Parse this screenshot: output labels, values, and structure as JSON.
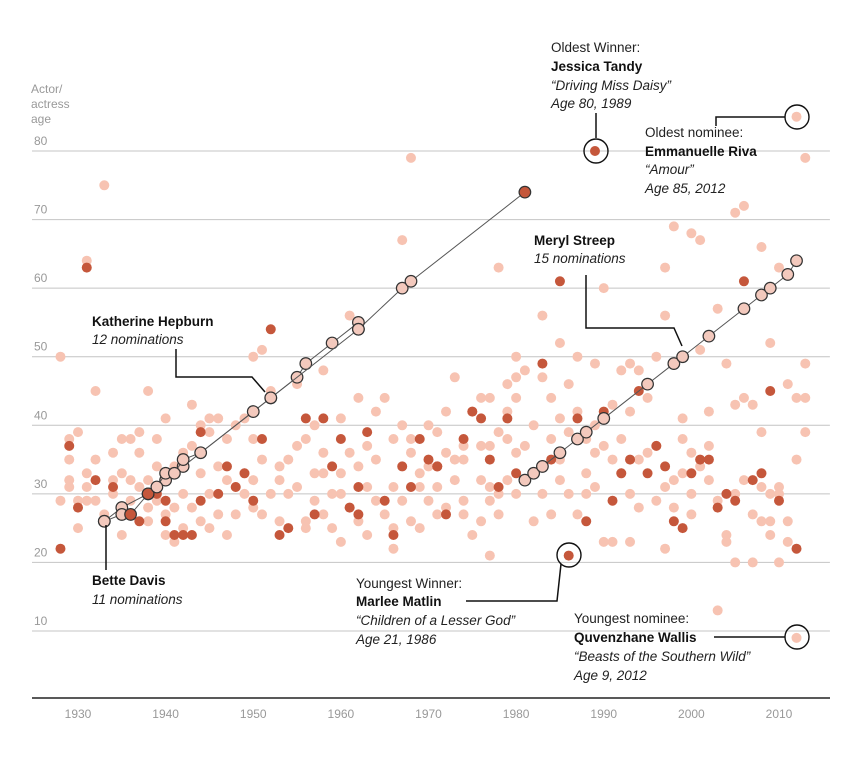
{
  "chart_data": {
    "type": "scatter",
    "title": "",
    "ylabel": [
      "Actor/",
      "actress",
      "age"
    ],
    "xlabel": "",
    "xlim": [
      1925,
      2015
    ],
    "ylim": [
      0,
      90
    ],
    "x_ticks": [
      1930,
      1940,
      1950,
      1960,
      1970,
      1980,
      1990,
      2000,
      2010
    ],
    "y_ticks": [
      10,
      20,
      30,
      40,
      50,
      60,
      70,
      80
    ],
    "grid": true,
    "colors": {
      "nominee": "#f7c3b2",
      "winner": "#c5573b",
      "career": "#f3c9bd",
      "outline": "#333333"
    },
    "nominees": [
      [
        1928,
        50
      ],
      [
        1928,
        29
      ],
      [
        1929,
        32
      ],
      [
        1929,
        35
      ],
      [
        1929,
        31
      ],
      [
        1929,
        38
      ],
      [
        1930,
        25
      ],
      [
        1930,
        29
      ],
      [
        1930,
        39
      ],
      [
        1931,
        64
      ],
      [
        1931,
        31
      ],
      [
        1931,
        29
      ],
      [
        1931,
        33
      ],
      [
        1932,
        45
      ],
      [
        1932,
        29
      ],
      [
        1932,
        35
      ],
      [
        1933,
        75
      ],
      [
        1933,
        27
      ],
      [
        1934,
        30
      ],
      [
        1934,
        36
      ],
      [
        1934,
        32
      ],
      [
        1935,
        24
      ],
      [
        1935,
        28
      ],
      [
        1935,
        38
      ],
      [
        1935,
        33
      ],
      [
        1936,
        29
      ],
      [
        1936,
        38
      ],
      [
        1936,
        32
      ],
      [
        1937,
        31
      ],
      [
        1937,
        36
      ],
      [
        1937,
        39
      ],
      [
        1938,
        28
      ],
      [
        1938,
        32
      ],
      [
        1938,
        26
      ],
      [
        1938,
        45
      ],
      [
        1939,
        38
      ],
      [
        1939,
        34
      ],
      [
        1939,
        29
      ],
      [
        1940,
        27
      ],
      [
        1940,
        24
      ],
      [
        1940,
        41
      ],
      [
        1941,
        23
      ],
      [
        1941,
        34
      ],
      [
        1941,
        28
      ],
      [
        1942,
        30
      ],
      [
        1942,
        36
      ],
      [
        1942,
        25
      ],
      [
        1943,
        28
      ],
      [
        1943,
        43
      ],
      [
        1943,
        37
      ],
      [
        1944,
        33
      ],
      [
        1944,
        26
      ],
      [
        1944,
        40
      ],
      [
        1945,
        30
      ],
      [
        1945,
        39
      ],
      [
        1945,
        41
      ],
      [
        1945,
        25
      ],
      [
        1946,
        27
      ],
      [
        1946,
        34
      ],
      [
        1946,
        41
      ],
      [
        1947,
        24
      ],
      [
        1947,
        32
      ],
      [
        1947,
        38
      ],
      [
        1948,
        31
      ],
      [
        1948,
        40
      ],
      [
        1948,
        27
      ],
      [
        1949,
        33
      ],
      [
        1949,
        30
      ],
      [
        1949,
        41
      ],
      [
        1950,
        50
      ],
      [
        1950,
        38
      ],
      [
        1950,
        32
      ],
      [
        1950,
        28
      ],
      [
        1951,
        51
      ],
      [
        1951,
        35
      ],
      [
        1951,
        27
      ],
      [
        1952,
        45
      ],
      [
        1952,
        30
      ],
      [
        1953,
        34
      ],
      [
        1953,
        26
      ],
      [
        1953,
        32
      ],
      [
        1954,
        35
      ],
      [
        1954,
        30
      ],
      [
        1955,
        37
      ],
      [
        1955,
        31
      ],
      [
        1955,
        46
      ],
      [
        1956,
        38
      ],
      [
        1956,
        26
      ],
      [
        1956,
        25
      ],
      [
        1957,
        29
      ],
      [
        1957,
        40
      ],
      [
        1957,
        33
      ],
      [
        1958,
        36
      ],
      [
        1958,
        33
      ],
      [
        1958,
        27
      ],
      [
        1958,
        48
      ],
      [
        1959,
        25
      ],
      [
        1959,
        52
      ],
      [
        1959,
        30
      ],
      [
        1960,
        33
      ],
      [
        1960,
        23
      ],
      [
        1960,
        41
      ],
      [
        1960,
        30
      ],
      [
        1961,
        56
      ],
      [
        1961,
        28
      ],
      [
        1961,
        36
      ],
      [
        1962,
        26
      ],
      [
        1962,
        34
      ],
      [
        1962,
        44
      ],
      [
        1963,
        24
      ],
      [
        1963,
        31
      ],
      [
        1963,
        37
      ],
      [
        1964,
        29
      ],
      [
        1964,
        35
      ],
      [
        1964,
        42
      ],
      [
        1965,
        44
      ],
      [
        1965,
        27
      ],
      [
        1966,
        25
      ],
      [
        1966,
        38
      ],
      [
        1966,
        31
      ],
      [
        1966,
        22
      ],
      [
        1967,
        67
      ],
      [
        1967,
        40
      ],
      [
        1967,
        29
      ],
      [
        1968,
        79
      ],
      [
        1968,
        26
      ],
      [
        1968,
        38
      ],
      [
        1968,
        36
      ],
      [
        1969,
        31
      ],
      [
        1969,
        33
      ],
      [
        1969,
        25
      ],
      [
        1970,
        40
      ],
      [
        1970,
        29
      ],
      [
        1970,
        34
      ],
      [
        1971,
        39
      ],
      [
        1971,
        27
      ],
      [
        1971,
        31
      ],
      [
        1972,
        36
      ],
      [
        1972,
        28
      ],
      [
        1972,
        42
      ],
      [
        1973,
        35
      ],
      [
        1973,
        32
      ],
      [
        1973,
        47
      ],
      [
        1974,
        29
      ],
      [
        1974,
        35
      ],
      [
        1974,
        27
      ],
      [
        1974,
        37
      ],
      [
        1975,
        42
      ],
      [
        1975,
        24
      ],
      [
        1976,
        32
      ],
      [
        1976,
        37
      ],
      [
        1976,
        44
      ],
      [
        1976,
        26
      ],
      [
        1977,
        44
      ],
      [
        1977,
        31
      ],
      [
        1977,
        37
      ],
      [
        1977,
        21
      ],
      [
        1977,
        29
      ],
      [
        1978,
        30
      ],
      [
        1978,
        63
      ],
      [
        1978,
        39
      ],
      [
        1978,
        27
      ],
      [
        1979,
        38
      ],
      [
        1979,
        46
      ],
      [
        1979,
        32
      ],
      [
        1979,
        42
      ],
      [
        1980,
        44
      ],
      [
        1980,
        36
      ],
      [
        1980,
        30
      ],
      [
        1980,
        50
      ],
      [
        1980,
        47
      ],
      [
        1981,
        48
      ],
      [
        1981,
        32
      ],
      [
        1981,
        37
      ],
      [
        1982,
        33
      ],
      [
        1982,
        40
      ],
      [
        1982,
        26
      ],
      [
        1983,
        30
      ],
      [
        1983,
        47
      ],
      [
        1983,
        34
      ],
      [
        1983,
        56
      ],
      [
        1984,
        27
      ],
      [
        1984,
        38
      ],
      [
        1984,
        44
      ],
      [
        1985,
        41
      ],
      [
        1985,
        32
      ],
      [
        1985,
        35
      ],
      [
        1985,
        52
      ],
      [
        1986,
        30
      ],
      [
        1986,
        46
      ],
      [
        1986,
        39
      ],
      [
        1987,
        27
      ],
      [
        1987,
        42
      ],
      [
        1987,
        50
      ],
      [
        1988,
        38
      ],
      [
        1988,
        33
      ],
      [
        1988,
        30
      ],
      [
        1989,
        40
      ],
      [
        1989,
        49
      ],
      [
        1989,
        36
      ],
      [
        1989,
        31
      ],
      [
        1990,
        60
      ],
      [
        1990,
        23
      ],
      [
        1990,
        37
      ],
      [
        1991,
        35
      ],
      [
        1991,
        23
      ],
      [
        1991,
        43
      ],
      [
        1992,
        48
      ],
      [
        1992,
        33
      ],
      [
        1992,
        38
      ],
      [
        1993,
        49
      ],
      [
        1993,
        30
      ],
      [
        1993,
        42
      ],
      [
        1993,
        23
      ],
      [
        1994,
        48
      ],
      [
        1994,
        28
      ],
      [
        1994,
        35
      ],
      [
        1995,
        44
      ],
      [
        1995,
        36
      ],
      [
        1996,
        50
      ],
      [
        1996,
        29
      ],
      [
        1996,
        37
      ],
      [
        1997,
        31
      ],
      [
        1997,
        63
      ],
      [
        1997,
        22
      ],
      [
        1997,
        56
      ],
      [
        1998,
        69
      ],
      [
        1998,
        32
      ],
      [
        1998,
        28
      ],
      [
        1999,
        41
      ],
      [
        1999,
        38
      ],
      [
        1999,
        33
      ],
      [
        2000,
        68
      ],
      [
        2000,
        30
      ],
      [
        2000,
        36
      ],
      [
        2000,
        27
      ],
      [
        2001,
        67
      ],
      [
        2001,
        51
      ],
      [
        2001,
        34
      ],
      [
        2002,
        42
      ],
      [
        2002,
        37
      ],
      [
        2002,
        32
      ],
      [
        2003,
        57
      ],
      [
        2003,
        13
      ],
      [
        2003,
        29
      ],
      [
        2004,
        24
      ],
      [
        2004,
        23
      ],
      [
        2004,
        49
      ],
      [
        2005,
        71
      ],
      [
        2005,
        20
      ],
      [
        2005,
        43
      ],
      [
        2005,
        30
      ],
      [
        2006,
        72
      ],
      [
        2006,
        32
      ],
      [
        2006,
        44
      ],
      [
        2007,
        27
      ],
      [
        2007,
        43
      ],
      [
        2007,
        20
      ],
      [
        2008,
        66
      ],
      [
        2008,
        26
      ],
      [
        2008,
        39
      ],
      [
        2008,
        31
      ],
      [
        2009,
        26
      ],
      [
        2009,
        30
      ],
      [
        2009,
        52
      ],
      [
        2009,
        24
      ],
      [
        2010,
        63
      ],
      [
        2010,
        20
      ],
      [
        2010,
        30
      ],
      [
        2010,
        31
      ],
      [
        2011,
        46
      ],
      [
        2011,
        26
      ],
      [
        2011,
        23
      ],
      [
        2012,
        64
      ],
      [
        2012,
        44
      ],
      [
        2012,
        35
      ],
      [
        2013,
        79
      ],
      [
        2013,
        49
      ],
      [
        2013,
        44
      ],
      [
        2013,
        39
      ],
      [
        2012,
        85
      ],
      [
        2012,
        9
      ]
    ],
    "winners": [
      [
        1928,
        22
      ],
      [
        1929,
        37
      ],
      [
        1930,
        28
      ],
      [
        1931,
        63
      ],
      [
        1932,
        32
      ],
      [
        1934,
        31
      ],
      [
        1936,
        27
      ],
      [
        1937,
        26
      ],
      [
        1938,
        30
      ],
      [
        1939,
        30
      ],
      [
        1940,
        26
      ],
      [
        1940,
        29
      ],
      [
        1941,
        24
      ],
      [
        1942,
        24
      ],
      [
        1943,
        24
      ],
      [
        1944,
        39
      ],
      [
        1944,
        29
      ],
      [
        1946,
        30
      ],
      [
        1947,
        34
      ],
      [
        1948,
        31
      ],
      [
        1949,
        33
      ],
      [
        1950,
        29
      ],
      [
        1951,
        38
      ],
      [
        1952,
        54
      ],
      [
        1953,
        24
      ],
      [
        1954,
        25
      ],
      [
        1956,
        41
      ],
      [
        1957,
        27
      ],
      [
        1958,
        41
      ],
      [
        1959,
        34
      ],
      [
        1960,
        38
      ],
      [
        1961,
        28
      ],
      [
        1962,
        31
      ],
      [
        1962,
        27
      ],
      [
        1963,
        39
      ],
      [
        1965,
        29
      ],
      [
        1966,
        24
      ],
      [
        1967,
        34
      ],
      [
        1968,
        31
      ],
      [
        1969,
        38
      ],
      [
        1970,
        35
      ],
      [
        1971,
        34
      ],
      [
        1971,
        34
      ],
      [
        1972,
        27
      ],
      [
        1974,
        38
      ],
      [
        1975,
        42
      ],
      [
        1976,
        41
      ],
      [
        1977,
        35
      ],
      [
        1978,
        31
      ],
      [
        1979,
        41
      ],
      [
        1980,
        33
      ],
      [
        1981,
        74
      ],
      [
        1983,
        49
      ],
      [
        1984,
        35
      ],
      [
        1985,
        61
      ],
      [
        1986,
        21
      ],
      [
        1987,
        41
      ],
      [
        1988,
        26
      ],
      [
        1989,
        80
      ],
      [
        1990,
        42
      ],
      [
        1991,
        29
      ],
      [
        1992,
        33
      ],
      [
        1993,
        35
      ],
      [
        1994,
        45
      ],
      [
        1995,
        33
      ],
      [
        1996,
        37
      ],
      [
        1997,
        34
      ],
      [
        1998,
        26
      ],
      [
        1999,
        25
      ],
      [
        2000,
        33
      ],
      [
        2001,
        35
      ],
      [
        2002,
        35
      ],
      [
        2003,
        28
      ],
      [
        2004,
        30
      ],
      [
        2005,
        29
      ],
      [
        2006,
        61
      ],
      [
        2007,
        32
      ],
      [
        2008,
        33
      ],
      [
        2009,
        45
      ],
      [
        2010,
        29
      ],
      [
        2012,
        22
      ]
    ],
    "series": [
      {
        "name": "Katherine Hepburn",
        "points": [
          [
            1933,
            26
          ],
          [
            1935,
            28
          ],
          [
            1938,
            30
          ],
          [
            1940,
            32
          ],
          [
            1942,
            34
          ],
          [
            1952,
            44
          ],
          [
            1955,
            47
          ],
          [
            1956,
            49
          ],
          [
            1959,
            52
          ],
          [
            1962,
            55
          ],
          [
            1962,
            54
          ],
          [
            1967,
            60
          ],
          [
            1968,
            61
          ],
          [
            1981,
            74
          ]
        ]
      },
      {
        "name": "Bette Davis",
        "points": [
          [
            1933,
            26
          ],
          [
            1935,
            27
          ],
          [
            1936,
            27
          ],
          [
            1938,
            30
          ],
          [
            1939,
            31
          ],
          [
            1940,
            33
          ],
          [
            1941,
            33
          ],
          [
            1942,
            35
          ],
          [
            1944,
            36
          ],
          [
            1950,
            42
          ],
          [
            1952,
            44
          ],
          [
            1962,
            54
          ]
        ]
      },
      {
        "name": "Meryl Streep",
        "points": [
          [
            1981,
            32
          ],
          [
            1982,
            33
          ],
          [
            1983,
            34
          ],
          [
            1985,
            36
          ],
          [
            1987,
            38
          ],
          [
            1988,
            39
          ],
          [
            1990,
            41
          ],
          [
            1995,
            46
          ],
          [
            1998,
            49
          ],
          [
            1999,
            50
          ],
          [
            2002,
            53
          ],
          [
            2006,
            57
          ],
          [
            2008,
            59
          ],
          [
            2009,
            60
          ],
          [
            2011,
            62
          ],
          [
            2012,
            64
          ]
        ]
      }
    ],
    "annotations": [
      {
        "id": "oldest_winner",
        "heading": "Oldest Winner:",
        "name": "Jessica Tandy",
        "film": "“Driving Miss Daisy”",
        "detail": "Age 80, 1989",
        "point": [
          1989,
          80
        ]
      },
      {
        "id": "oldest_nominee",
        "heading": "Oldest nominee:",
        "name": "Emmanuelle Riva",
        "film": "“Amour”",
        "detail": "Age 85, 2012",
        "point": [
          2012,
          85
        ]
      },
      {
        "id": "youngest_winner",
        "heading": "Youngest Winner:",
        "name": "Marlee Matlin",
        "film": "“Children of a Lesser God”",
        "detail": "Age 21, 1986",
        "point": [
          1986,
          21
        ]
      },
      {
        "id": "youngest_nominee",
        "heading": "Youngest nominee:",
        "name": "Quvenzhane Wallis",
        "film": "“Beasts of the Southern Wild”",
        "detail": "Age 9, 2012",
        "point": [
          2012,
          9
        ]
      },
      {
        "id": "hepburn",
        "name": "Katherine Hepburn",
        "detail": "12 nominations"
      },
      {
        "id": "streep",
        "name": "Meryl Streep",
        "detail": "15 nominations"
      },
      {
        "id": "davis",
        "name": "Bette Davis",
        "detail": "11 nominations"
      }
    ]
  }
}
